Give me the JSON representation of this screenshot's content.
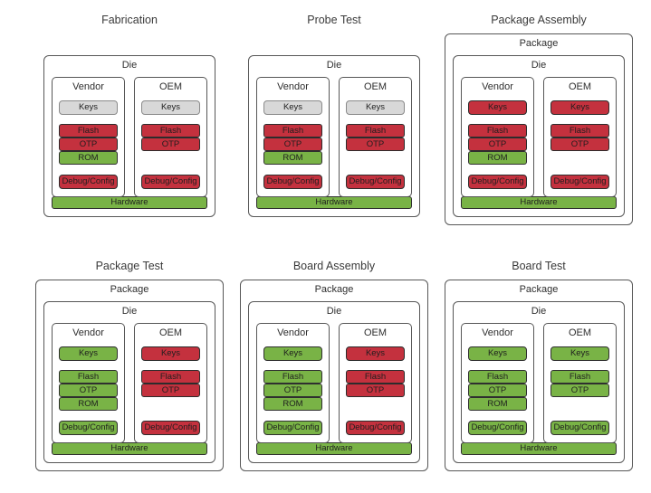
{
  "colors": {
    "blocked_red": "#c4313e",
    "accessible_green": "#79b346",
    "neutral_gray": "#d8d8d8",
    "outline": "#575757",
    "background": "#ffffff"
  },
  "stages": [
    {
      "title": "Fabrication",
      "die_label": "Die",
      "vendor": {
        "label": "Vendor",
        "keys": {
          "label": "Keys",
          "state": "gray"
        },
        "flash": {
          "label": "Flash",
          "state": "red"
        },
        "otp": {
          "label": "OTP",
          "state": "red"
        },
        "rom": {
          "label": "ROM",
          "state": "green"
        },
        "debug": {
          "label": "Debug/Config",
          "state": "red"
        }
      },
      "oem": {
        "label": "OEM",
        "keys": {
          "label": "Keys",
          "state": "gray"
        },
        "flash": {
          "label": "Flash",
          "state": "red"
        },
        "otp": {
          "label": "OTP",
          "state": "red"
        },
        "debug": {
          "label": "Debug/Config",
          "state": "red"
        }
      },
      "hardware": {
        "label": "Hardware",
        "state": "green"
      }
    },
    {
      "title": "Probe Test",
      "die_label": "Die",
      "vendor": {
        "label": "Vendor",
        "keys": {
          "label": "Keys",
          "state": "gray"
        },
        "flash": {
          "label": "Flash",
          "state": "red"
        },
        "otp": {
          "label": "OTP",
          "state": "red"
        },
        "rom": {
          "label": "ROM",
          "state": "green"
        },
        "debug": {
          "label": "Debug/Config",
          "state": "red"
        }
      },
      "oem": {
        "label": "OEM",
        "keys": {
          "label": "Keys",
          "state": "gray"
        },
        "flash": {
          "label": "Flash",
          "state": "red"
        },
        "otp": {
          "label": "OTP",
          "state": "red"
        },
        "debug": {
          "label": "Debug/Config",
          "state": "red"
        }
      },
      "hardware": {
        "label": "Hardware",
        "state": "green"
      }
    },
    {
      "title": "Package Assembly",
      "package_label": "Package",
      "die_label": "Die",
      "vendor": {
        "label": "Vendor",
        "keys": {
          "label": "Keys",
          "state": "red"
        },
        "flash": {
          "label": "Flash",
          "state": "red"
        },
        "otp": {
          "label": "OTP",
          "state": "red"
        },
        "rom": {
          "label": "ROM",
          "state": "green"
        },
        "debug": {
          "label": "Debug/Config",
          "state": "red"
        }
      },
      "oem": {
        "label": "OEM",
        "keys": {
          "label": "Keys",
          "state": "red"
        },
        "flash": {
          "label": "Flash",
          "state": "red"
        },
        "otp": {
          "label": "OTP",
          "state": "red"
        },
        "debug": {
          "label": "Debug/Config",
          "state": "red"
        }
      },
      "hardware": {
        "label": "Hardware",
        "state": "green"
      }
    },
    {
      "title": "Package Test",
      "package_label": "Package",
      "die_label": "Die",
      "vendor": {
        "label": "Vendor",
        "keys": {
          "label": "Keys",
          "state": "green"
        },
        "flash": {
          "label": "Flash",
          "state": "green"
        },
        "otp": {
          "label": "OTP",
          "state": "green"
        },
        "rom": {
          "label": "ROM",
          "state": "green"
        },
        "debug": {
          "label": "Debug/Config",
          "state": "green"
        }
      },
      "oem": {
        "label": "OEM",
        "keys": {
          "label": "Keys",
          "state": "red"
        },
        "flash": {
          "label": "Flash",
          "state": "red"
        },
        "otp": {
          "label": "OTP",
          "state": "red"
        },
        "debug": {
          "label": "Debug/Config",
          "state": "red"
        }
      },
      "hardware": {
        "label": "Hardware",
        "state": "green"
      }
    },
    {
      "title": "Board Assembly",
      "package_label": "Package",
      "die_label": "Die",
      "vendor": {
        "label": "Vendor",
        "keys": {
          "label": "Keys",
          "state": "green"
        },
        "flash": {
          "label": "Flash",
          "state": "green"
        },
        "otp": {
          "label": "OTP",
          "state": "green"
        },
        "rom": {
          "label": "ROM",
          "state": "green"
        },
        "debug": {
          "label": "Debug/Config",
          "state": "green"
        }
      },
      "oem": {
        "label": "OEM",
        "keys": {
          "label": "Keys",
          "state": "red"
        },
        "flash": {
          "label": "Flash",
          "state": "red"
        },
        "otp": {
          "label": "OTP",
          "state": "red"
        },
        "debug": {
          "label": "Debug/Config",
          "state": "red"
        }
      },
      "hardware": {
        "label": "Hardware",
        "state": "green"
      }
    },
    {
      "title": "Board Test",
      "package_label": "Package",
      "die_label": "Die",
      "vendor": {
        "label": "Vendor",
        "keys": {
          "label": "Keys",
          "state": "green"
        },
        "flash": {
          "label": "Flash",
          "state": "green"
        },
        "otp": {
          "label": "OTP",
          "state": "green"
        },
        "rom": {
          "label": "ROM",
          "state": "green"
        },
        "debug": {
          "label": "Debug/Config",
          "state": "green"
        }
      },
      "oem": {
        "label": "OEM",
        "keys": {
          "label": "Keys",
          "state": "green"
        },
        "flash": {
          "label": "Flash",
          "state": "green"
        },
        "otp": {
          "label": "OTP",
          "state": "green"
        },
        "debug": {
          "label": "Debug/Config",
          "state": "green"
        }
      },
      "hardware": {
        "label": "Hardware",
        "state": "green"
      }
    }
  ]
}
